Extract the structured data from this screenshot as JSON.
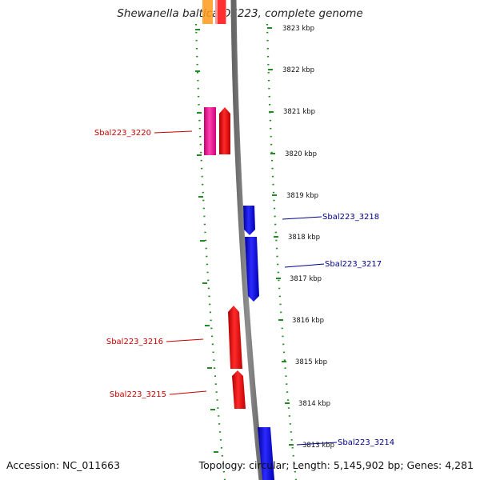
{
  "title": "Shewanella baltica OS223, complete genome",
  "accession": "Accession: NC_011663",
  "topology": "Topology: circular; Length: 5,145,902 bp; Genes: 4,281",
  "colors": {
    "forward_gene": "#ff0000",
    "reverse_gene": "#0000ff",
    "other_feature": "#ff1493",
    "label_forward": "#cc0000",
    "label_reverse": "#00008b",
    "dotted_guide": "#228b22",
    "backbone": "#808080"
  },
  "scale_labels": [
    "3823 kbp",
    "3822 kbp",
    "3821 kbp",
    "3820 kbp",
    "3819 kbp",
    "3818 kbp",
    "3817 kbp",
    "3816 kbp",
    "3815 kbp",
    "3814 kbp",
    "3813 kbp"
  ],
  "gene_labels": [
    "Sbal223_3220",
    "Sbal223_3218",
    "Sbal223_3217",
    "Sbal223_3216",
    "Sbal223_3215",
    "Sbal223_3214"
  ]
}
